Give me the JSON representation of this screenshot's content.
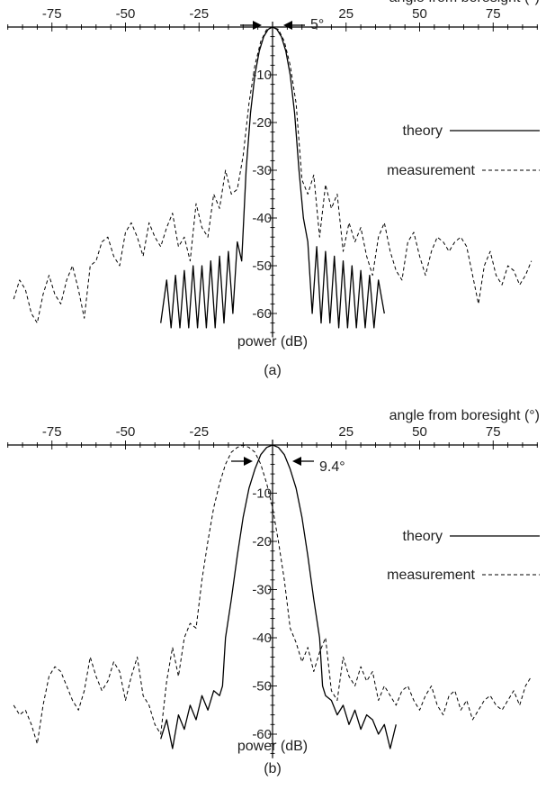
{
  "chart_data": [
    {
      "type": "line",
      "panel_label": "(a)",
      "xlabel": "angle from boresight (°)",
      "ylabel": "power (dB)",
      "x_ticks": [
        -75,
        -50,
        -25,
        25,
        50,
        75
      ],
      "y_ticks": [
        -10,
        -20,
        -30,
        -40,
        -50,
        -60
      ],
      "xlim": [
        -90,
        90
      ],
      "ylim": [
        -65,
        0
      ],
      "beamwidth_annotation": "5°",
      "legend": {
        "theory": "theory",
        "measurement": "measurement",
        "placement": "right"
      },
      "series": [
        {
          "name": "theory",
          "style": "solid",
          "x": [
            -38,
            -36,
            -34.5,
            -33,
            -31.5,
            -30,
            -28.5,
            -27,
            -25.5,
            -24,
            -22.5,
            -21,
            -19.5,
            -18,
            -16.5,
            -15,
            -13.5,
            -12,
            -10.5,
            -9,
            -7.5,
            -6,
            -4.5,
            -3,
            -1.5,
            0,
            1.5,
            3,
            4.5,
            6,
            7.5,
            9,
            10.5,
            12,
            13.5,
            15,
            16.5,
            18,
            19.5,
            21,
            22.5,
            24,
            25.5,
            27,
            28.5,
            30,
            31.5,
            33,
            34.5,
            36,
            38
          ],
          "y": [
            -62,
            -53,
            -63,
            -52,
            -63,
            -51,
            -63,
            -50,
            -63,
            -50,
            -63,
            -49,
            -63,
            -48,
            -62,
            -47,
            -60,
            -45,
            -49,
            -30,
            -18,
            -10,
            -5,
            -2,
            -0.5,
            0,
            -0.5,
            -2,
            -5,
            -10,
            -18,
            -30,
            -40,
            -45,
            -60,
            -46,
            -62,
            -47,
            -62,
            -48,
            -63,
            -49,
            -63,
            -50,
            -63,
            -51,
            -63,
            -52,
            -63,
            -53,
            -60
          ]
        },
        {
          "name": "measurement",
          "style": "dashed",
          "x": [
            -88,
            -86,
            -84,
            -82,
            -80,
            -78,
            -76,
            -74,
            -72,
            -70,
            -68,
            -66,
            -64,
            -62,
            -60,
            -58,
            -56,
            -54,
            -52,
            -50,
            -48,
            -46,
            -44,
            -42,
            -40,
            -38,
            -36,
            -34,
            -32,
            -30,
            -28,
            -26,
            -24,
            -22,
            -20,
            -18,
            -16,
            -14,
            -12,
            -10,
            -8,
            -6,
            -4,
            -2,
            0,
            2,
            4,
            6,
            8,
            10,
            12,
            14,
            16,
            18,
            20,
            22,
            24,
            26,
            28,
            30,
            32,
            34,
            36,
            38,
            40,
            42,
            44,
            46,
            48,
            50,
            52,
            54,
            56,
            58,
            60,
            62,
            64,
            66,
            68,
            70,
            72,
            74,
            76,
            78,
            80,
            82,
            84,
            86,
            88
          ],
          "y": [
            -57,
            -53,
            -55,
            -60,
            -62,
            -56,
            -52,
            -56,
            -58,
            -53,
            -50,
            -55,
            -61,
            -50,
            -49,
            -45,
            -44,
            -48,
            -50,
            -43,
            -41,
            -44,
            -48,
            -41,
            -44,
            -46,
            -42,
            -39,
            -46,
            -44,
            -49,
            -37,
            -42,
            -44,
            -35,
            -38,
            -30,
            -35,
            -34,
            -27,
            -16,
            -8,
            -3,
            -0.5,
            0,
            -0.5,
            -3,
            -8,
            -16,
            -32,
            -35,
            -31,
            -44,
            -33,
            -38,
            -35,
            -47,
            -41,
            -45,
            -42,
            -48,
            -52,
            -44,
            -41,
            -47,
            -51,
            -53,
            -45,
            -43,
            -48,
            -52,
            -47,
            -44,
            -45,
            -47,
            -45,
            -44,
            -46,
            -52,
            -58,
            -50,
            -47,
            -52,
            -54,
            -50,
            -51,
            -54,
            -52,
            -49
          ]
        }
      ]
    },
    {
      "type": "line",
      "panel_label": "(b)",
      "xlabel": "angle from boresight (°)",
      "ylabel": "power (dB)",
      "x_ticks": [
        -75,
        -50,
        -25,
        25,
        50,
        75
      ],
      "y_ticks": [
        -10,
        -20,
        -30,
        -40,
        -50,
        -60
      ],
      "xlim": [
        -90,
        90
      ],
      "ylim": [
        -65,
        0
      ],
      "beamwidth_annotation": "9.4°",
      "legend": {
        "theory": "theory",
        "measurement": "measurement",
        "placement": "right"
      },
      "series": [
        {
          "name": "theory",
          "style": "solid",
          "x": [
            -38,
            -36,
            -34,
            -32,
            -30,
            -28,
            -26,
            -24,
            -22,
            -20,
            -18,
            -17,
            -16,
            -14,
            -12,
            -10,
            -8,
            -6,
            -4,
            -2,
            0,
            2,
            4,
            6,
            8,
            10,
            12,
            14,
            16,
            17,
            18,
            20,
            22,
            24,
            26,
            28,
            30,
            32,
            34,
            36,
            38,
            40,
            42
          ],
          "y": [
            -61,
            -57,
            -63,
            -56,
            -59,
            -54,
            -57,
            -52,
            -55,
            -51,
            -52,
            -50,
            -40,
            -32,
            -23,
            -15,
            -9,
            -5,
            -2,
            -0.5,
            0,
            -0.5,
            -2,
            -5,
            -9,
            -15,
            -23,
            -32,
            -40,
            -50,
            -52,
            -53,
            -56,
            -54,
            -58,
            -55,
            -59,
            -56,
            -57,
            -60,
            -58,
            -63,
            -58
          ]
        },
        {
          "name": "measurement",
          "style": "dashed",
          "x": [
            -88,
            -86,
            -84,
            -82,
            -80,
            -78,
            -76,
            -74,
            -72,
            -70,
            -68,
            -66,
            -64,
            -62,
            -60,
            -58,
            -56,
            -54,
            -52,
            -50,
            -48,
            -46,
            -44,
            -42,
            -40,
            -38,
            -36,
            -34,
            -32,
            -30,
            -28,
            -26,
            -24,
            -22,
            -20,
            -18,
            -16,
            -14,
            -12,
            -10,
            -8,
            -6,
            -4,
            -2,
            0,
            2,
            4,
            6,
            8,
            10,
            12,
            14,
            16,
            18,
            20,
            22,
            24,
            26,
            28,
            30,
            32,
            34,
            36,
            38,
            40,
            42,
            44,
            46,
            48,
            50,
            52,
            54,
            56,
            58,
            60,
            62,
            64,
            66,
            68,
            70,
            72,
            74,
            76,
            78,
            80,
            82,
            84,
            86,
            88
          ],
          "y": [
            -54,
            -56,
            -55,
            -58,
            -62,
            -54,
            -48,
            -46,
            -47,
            -50,
            -53,
            -55,
            -51,
            -44,
            -48,
            -51,
            -49,
            -45,
            -47,
            -53,
            -48,
            -44,
            -52,
            -54,
            -58,
            -60,
            -49,
            -42,
            -48,
            -40,
            -37,
            -38,
            -28,
            -20,
            -13,
            -8,
            -4,
            -1.5,
            -0.5,
            0,
            -0.5,
            -1.5,
            -4,
            -8,
            -13,
            -20,
            -28,
            -38,
            -41,
            -45,
            -42,
            -47,
            -43,
            -40,
            -51,
            -53,
            -44,
            -48,
            -50,
            -46,
            -49,
            -47,
            -53,
            -50,
            -52,
            -54,
            -51,
            -50,
            -53,
            -55,
            -52,
            -50,
            -54,
            -56,
            -52,
            -51,
            -55,
            -53,
            -57,
            -55,
            -53,
            -52,
            -54,
            -55,
            -53,
            -51,
            -54,
            -50,
            -48
          ]
        }
      ]
    }
  ]
}
